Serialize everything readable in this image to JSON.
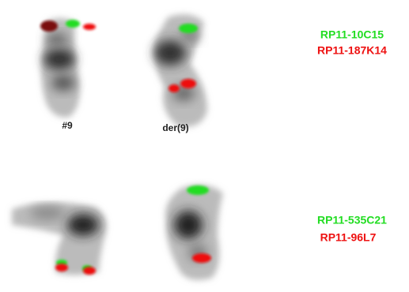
{
  "top_panel": {
    "probes": [
      "RP11-10C15",
      "RP11-187K14"
    ],
    "chromosome_labels": [
      "#9",
      "der(9)"
    ]
  },
  "bottom_panel": {
    "probes": [
      "RP11-535C21",
      "RP11-96L7"
    ]
  }
}
